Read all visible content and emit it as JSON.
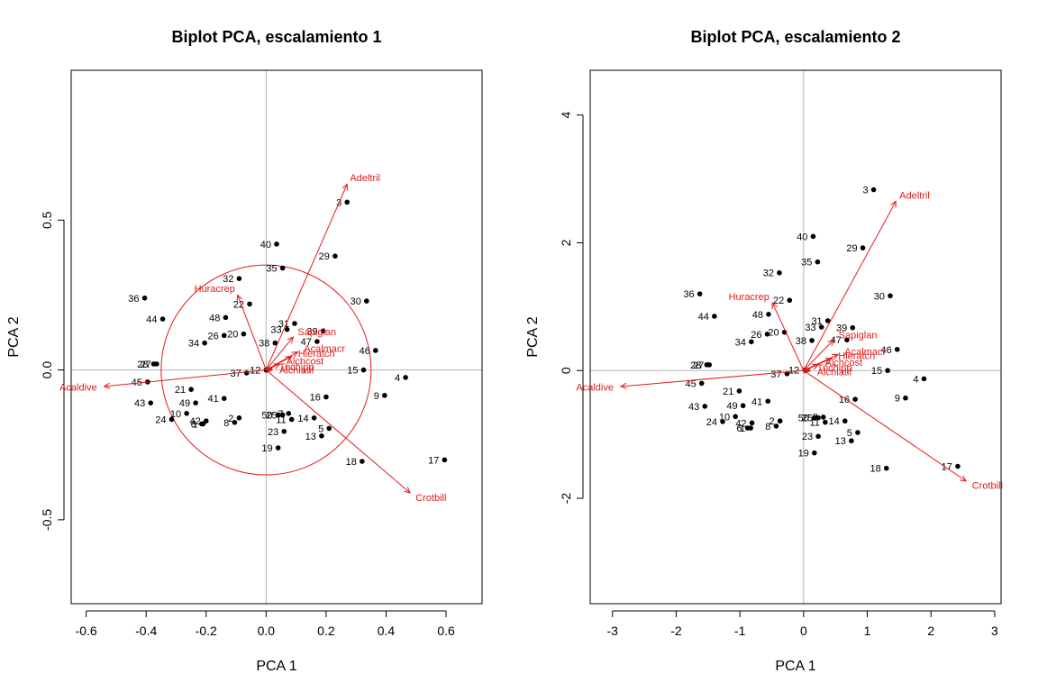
{
  "chart_data": [
    {
      "type": "scatter",
      "title": "Biplot PCA, escalamiento 1",
      "xlabel": "PCA  1",
      "ylabel": "PCA  2",
      "xlim": [
        -0.65,
        0.72
      ],
      "ylim": [
        -0.78,
        1.0
      ],
      "xticks": [
        -0.6,
        -0.4,
        -0.2,
        0.0,
        0.2,
        0.4,
        0.6
      ],
      "xtick_labels": [
        "-0.6",
        "-0.4",
        "-0.2",
        "0.0",
        "0.2",
        "0.4",
        "0.6"
      ],
      "yticks": [
        -0.5,
        0.0,
        0.5
      ],
      "ytick_labels": [
        "-0.5",
        "0.0",
        "0.5"
      ],
      "grid": false,
      "reference_lines": "x=0, y=0",
      "circle_radius": 0.35,
      "arrow_color": "#e31a1c",
      "sites": [
        {
          "label": "3",
          "x": 0.27,
          "y": 0.56
        },
        {
          "label": "40",
          "x": 0.035,
          "y": 0.42
        },
        {
          "label": "29",
          "x": 0.23,
          "y": 0.38
        },
        {
          "label": "35",
          "x": 0.055,
          "y": 0.34
        },
        {
          "label": "32",
          "x": -0.09,
          "y": 0.305
        },
        {
          "label": "36",
          "x": -0.405,
          "y": 0.24
        },
        {
          "label": "30",
          "x": 0.335,
          "y": 0.23
        },
        {
          "label": "22",
          "x": -0.055,
          "y": 0.22
        },
        {
          "label": "44",
          "x": -0.345,
          "y": 0.17
        },
        {
          "label": "48",
          "x": -0.135,
          "y": 0.175
        },
        {
          "label": "31",
          "x": 0.095,
          "y": 0.155
        },
        {
          "label": "33",
          "x": 0.07,
          "y": 0.135
        },
        {
          "label": "39",
          "x": 0.19,
          "y": 0.13
        },
        {
          "label": "20",
          "x": -0.075,
          "y": 0.12
        },
        {
          "label": "26",
          "x": -0.14,
          "y": 0.115
        },
        {
          "label": "38",
          "x": 0.03,
          "y": 0.09
        },
        {
          "label": "47",
          "x": 0.17,
          "y": 0.095
        },
        {
          "label": "34",
          "x": -0.205,
          "y": 0.09
        },
        {
          "label": "46",
          "x": 0.365,
          "y": 0.065
        },
        {
          "label": "28",
          "x": -0.375,
          "y": 0.02
        },
        {
          "label": "27",
          "x": -0.365,
          "y": 0.02
        },
        {
          "label": "15",
          "x": 0.325,
          "y": 0.0
        },
        {
          "label": "37",
          "x": -0.065,
          "y": -0.01
        },
        {
          "label": "12",
          "x": 0.0,
          "y": 0.0
        },
        {
          "label": "4",
          "x": 0.465,
          "y": -0.025
        },
        {
          "label": "45",
          "x": -0.395,
          "y": -0.04
        },
        {
          "label": "21",
          "x": -0.25,
          "y": -0.065
        },
        {
          "label": "9",
          "x": 0.395,
          "y": -0.085
        },
        {
          "label": "16",
          "x": 0.2,
          "y": -0.09
        },
        {
          "label": "41",
          "x": -0.14,
          "y": -0.095
        },
        {
          "label": "49",
          "x": -0.235,
          "y": -0.11
        },
        {
          "label": "43",
          "x": -0.385,
          "y": -0.11
        },
        {
          "label": "10",
          "x": -0.265,
          "y": -0.145
        },
        {
          "label": "50",
          "x": 0.04,
          "y": -0.15
        },
        {
          "label": "25",
          "x": 0.055,
          "y": -0.15
        },
        {
          "label": "7",
          "x": 0.075,
          "y": -0.145
        },
        {
          "label": "24",
          "x": -0.315,
          "y": -0.165
        },
        {
          "label": "42",
          "x": -0.2,
          "y": -0.17
        },
        {
          "label": "2",
          "x": -0.09,
          "y": -0.16
        },
        {
          "label": "11",
          "x": 0.085,
          "y": -0.165
        },
        {
          "label": "14",
          "x": 0.16,
          "y": -0.16
        },
        {
          "label": "6",
          "x": -0.215,
          "y": -0.18
        },
        {
          "label": "1",
          "x": -0.21,
          "y": -0.18
        },
        {
          "label": "8",
          "x": -0.105,
          "y": -0.175
        },
        {
          "label": "5",
          "x": 0.21,
          "y": -0.195
        },
        {
          "label": "23",
          "x": 0.06,
          "y": -0.205
        },
        {
          "label": "13",
          "x": 0.185,
          "y": -0.22
        },
        {
          "label": "19",
          "x": 0.04,
          "y": -0.26
        },
        {
          "label": "18",
          "x": 0.32,
          "y": -0.305
        },
        {
          "label": "17",
          "x": 0.595,
          "y": -0.3
        }
      ],
      "species": [
        {
          "label": "Adeltril",
          "x": 0.27,
          "y": 0.62
        },
        {
          "label": "Crotbill",
          "x": 0.48,
          "y": -0.41
        },
        {
          "label": "Acaldive",
          "x": -0.54,
          "y": -0.055
        },
        {
          "label": "Huracrep",
          "x": -0.095,
          "y": 0.25
        },
        {
          "label": "Sapiglan",
          "x": 0.09,
          "y": 0.11
        },
        {
          "label": "Acalmacr",
          "x": 0.105,
          "y": 0.06
        },
        {
          "label": "Hieratch",
          "x": 0.085,
          "y": 0.045
        },
        {
          "label": "Alchcost",
          "x": 0.045,
          "y": 0.02
        },
        {
          "label": "Trichipp",
          "x": 0.02,
          "y": 0.005
        },
        {
          "label": "Alchlatif",
          "x": 0.02,
          "y": 0.0
        }
      ]
    },
    {
      "type": "scatter",
      "title": "Biplot PCA, escalamiento 2",
      "xlabel": "PCA  1",
      "ylabel": "PCA  2",
      "xlim": [
        -3.35,
        3.1
      ],
      "ylim": [
        -3.65,
        4.7
      ],
      "xticks": [
        -3,
        -2,
        -1,
        0,
        1,
        2,
        3
      ],
      "xtick_labels": [
        "-3",
        "-2",
        "-1",
        "0",
        "1",
        "2",
        "3"
      ],
      "yticks": [
        -2,
        0,
        2,
        4
      ],
      "ytick_labels": [
        "-2",
        "0",
        "2",
        "4"
      ],
      "grid": false,
      "reference_lines": "x=0, y=0",
      "arrow_color": "#e31a1c",
      "sites": [
        {
          "label": "3",
          "x": 1.1,
          "y": 2.83
        },
        {
          "label": "40",
          "x": 0.15,
          "y": 2.1
        },
        {
          "label": "29",
          "x": 0.93,
          "y": 1.92
        },
        {
          "label": "35",
          "x": 0.22,
          "y": 1.7
        },
        {
          "label": "32",
          "x": -0.38,
          "y": 1.53
        },
        {
          "label": "36",
          "x": -1.63,
          "y": 1.2
        },
        {
          "label": "30",
          "x": 1.36,
          "y": 1.17
        },
        {
          "label": "22",
          "x": -0.22,
          "y": 1.1
        },
        {
          "label": "44",
          "x": -1.4,
          "y": 0.85
        },
        {
          "label": "48",
          "x": -0.55,
          "y": 0.88
        },
        {
          "label": "31",
          "x": 0.38,
          "y": 0.78
        },
        {
          "label": "33",
          "x": 0.28,
          "y": 0.68
        },
        {
          "label": "39",
          "x": 0.77,
          "y": 0.67
        },
        {
          "label": "20",
          "x": -0.3,
          "y": 0.6
        },
        {
          "label": "26",
          "x": -0.57,
          "y": 0.57
        },
        {
          "label": "38",
          "x": 0.13,
          "y": 0.47
        },
        {
          "label": "47",
          "x": 0.68,
          "y": 0.48
        },
        {
          "label": "34",
          "x": -0.82,
          "y": 0.45
        },
        {
          "label": "46",
          "x": 1.47,
          "y": 0.33
        },
        {
          "label": "28",
          "x": -1.52,
          "y": 0.09
        },
        {
          "label": "27",
          "x": -1.48,
          "y": 0.09
        },
        {
          "label": "15",
          "x": 1.32,
          "y": 0.0
        },
        {
          "label": "37",
          "x": -0.26,
          "y": -0.05
        },
        {
          "label": "12",
          "x": 0.02,
          "y": 0.01
        },
        {
          "label": "4",
          "x": 1.89,
          "y": -0.13
        },
        {
          "label": "45",
          "x": -1.6,
          "y": -0.2
        },
        {
          "label": "21",
          "x": -1.01,
          "y": -0.32
        },
        {
          "label": "9",
          "x": 1.6,
          "y": -0.43
        },
        {
          "label": "16",
          "x": 0.81,
          "y": -0.45
        },
        {
          "label": "41",
          "x": -0.56,
          "y": -0.48
        },
        {
          "label": "49",
          "x": -0.95,
          "y": -0.55
        },
        {
          "label": "43",
          "x": -1.55,
          "y": -0.56
        },
        {
          "label": "10",
          "x": -1.07,
          "y": -0.72
        },
        {
          "label": "50",
          "x": 0.17,
          "y": -0.74
        },
        {
          "label": "25",
          "x": 0.23,
          "y": -0.74
        },
        {
          "label": "7",
          "x": 0.31,
          "y": -0.73
        },
        {
          "label": "24",
          "x": -1.27,
          "y": -0.8
        },
        {
          "label": "42",
          "x": -0.81,
          "y": -0.82
        },
        {
          "label": "2",
          "x": -0.37,
          "y": -0.79
        },
        {
          "label": "11",
          "x": 0.34,
          "y": -0.81
        },
        {
          "label": "14",
          "x": 0.65,
          "y": -0.79
        },
        {
          "label": "6",
          "x": -0.88,
          "y": -0.9
        },
        {
          "label": "1",
          "x": -0.83,
          "y": -0.9
        },
        {
          "label": "8",
          "x": -0.43,
          "y": -0.87
        },
        {
          "label": "5",
          "x": 0.85,
          "y": -0.97
        },
        {
          "label": "23",
          "x": 0.23,
          "y": -1.03
        },
        {
          "label": "13",
          "x": 0.75,
          "y": -1.1
        },
        {
          "label": "19",
          "x": 0.17,
          "y": -1.29
        },
        {
          "label": "18",
          "x": 1.3,
          "y": -1.53
        },
        {
          "label": "17",
          "x": 2.42,
          "y": -1.5
        }
      ],
      "species": [
        {
          "label": "Adeltril",
          "x": 1.45,
          "y": 2.65
        },
        {
          "label": "Crotbill",
          "x": 2.55,
          "y": -1.73
        },
        {
          "label": "Acaldive",
          "x": -2.87,
          "y": -0.25
        },
        {
          "label": "Huracrep",
          "x": -0.49,
          "y": 1.06
        },
        {
          "label": "Sapiglan",
          "x": 0.47,
          "y": 0.48
        },
        {
          "label": "Acalmacr",
          "x": 0.54,
          "y": 0.25
        },
        {
          "label": "Hieratch",
          "x": 0.44,
          "y": 0.19
        },
        {
          "label": "Alchcost",
          "x": 0.23,
          "y": 0.09
        },
        {
          "label": "Trichipp",
          "x": 0.1,
          "y": 0.02
        },
        {
          "label": "Alchlatif",
          "x": 0.1,
          "y": -0.01
        }
      ]
    }
  ]
}
